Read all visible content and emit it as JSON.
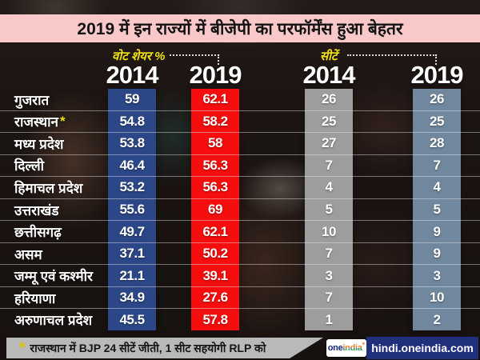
{
  "title": "2019 में इन राज्यों में बीजेपी का परफॉर्मेंस हुआ बेहतर",
  "header": {
    "vote_share_group": "वोट शेयर %",
    "seats_group": "सीटें",
    "col_vs_2014": "2014",
    "col_vs_2019": "2019",
    "col_seats_2014": "2014",
    "col_seats_2019": "2019"
  },
  "rows": [
    {
      "state": "गुजरात",
      "note": "",
      "vs2014": "59",
      "vs2019": "62.1",
      "seats2014": "26",
      "seats2019": "26"
    },
    {
      "state": "राजस्थान",
      "note": "*",
      "vs2014": "54.8",
      "vs2019": "58.2",
      "seats2014": "25",
      "seats2019": "25"
    },
    {
      "state": "मध्य प्रदेश",
      "note": "",
      "vs2014": "53.8",
      "vs2019": "58",
      "seats2014": "27",
      "seats2019": "28"
    },
    {
      "state": "दिल्ली",
      "note": "",
      "vs2014": "46.4",
      "vs2019": "56.3",
      "seats2014": "7",
      "seats2019": "7"
    },
    {
      "state": "हिमाचल प्रदेश",
      "note": "",
      "vs2014": "53.2",
      "vs2019": "56.3",
      "seats2014": "4",
      "seats2019": "4"
    },
    {
      "state": "उत्तराखंड",
      "note": "",
      "vs2014": "55.6",
      "vs2019": "69",
      "seats2014": "5",
      "seats2019": "5"
    },
    {
      "state": "छत्तीसगढ़",
      "note": "",
      "vs2014": "49.7",
      "vs2019": "62.1",
      "seats2014": "10",
      "seats2019": "9"
    },
    {
      "state": "असम",
      "note": "",
      "vs2014": "37.1",
      "vs2019": "50.2",
      "seats2014": "7",
      "seats2019": "9"
    },
    {
      "state": "जम्मू एवं कश्मीर",
      "note": "",
      "vs2014": "21.1",
      "vs2019": "39.1",
      "seats2014": "3",
      "seats2019": "3"
    },
    {
      "state": "हरियाणा",
      "note": "",
      "vs2014": "34.9",
      "vs2019": "27.6",
      "seats2014": "7",
      "seats2019": "10"
    },
    {
      "state": "अरुणाचल प्रदेश",
      "note": "",
      "vs2014": "45.5",
      "vs2019": "57.8",
      "seats2014": "1",
      "seats2019": "2"
    }
  ],
  "chart_data": {
    "type": "table",
    "title": "2019 में इन राज्यों में बीजेपी का परफॉर्मेंस हुआ बेहतर",
    "categories": [
      "गुजरात",
      "राजस्थान",
      "मध्य प्रदेश",
      "दिल्ली",
      "हिमाचल प्रदेश",
      "उत्तराखंड",
      "छत्तीसगढ़",
      "असम",
      "जम्मू एवं कश्मीर",
      "हरियाणा",
      "अरुणाचल प्रदेश"
    ],
    "series": [
      {
        "name": "वोट शेयर % 2014",
        "values": [
          59,
          54.8,
          53.8,
          46.4,
          53.2,
          55.6,
          49.7,
          37.1,
          21.1,
          34.9,
          45.5
        ]
      },
      {
        "name": "वोट शेयर % 2019",
        "values": [
          62.1,
          58.2,
          58,
          56.3,
          56.3,
          69,
          62.1,
          50.2,
          39.1,
          27.6,
          57.8
        ]
      },
      {
        "name": "सीटें 2014",
        "values": [
          26,
          25,
          27,
          7,
          4,
          5,
          10,
          7,
          3,
          7,
          1
        ]
      },
      {
        "name": "सीटें 2019",
        "values": [
          26,
          25,
          28,
          7,
          4,
          5,
          9,
          9,
          3,
          10,
          2
        ]
      }
    ],
    "footnote": "* राजस्थान में BJP 24 सीटें जीती, 1 सीट सहयोगी RLP को"
  },
  "footer": {
    "asterisk": "*",
    "note": "राजस्थान में BJP 24 सीटें जीती, 1 सीट सहयोगी RLP को",
    "logo": {
      "one": "one",
      "india": "india"
    },
    "site": "hindi.oneindia.com"
  },
  "colors": {
    "title_bg": "#f9c8c9",
    "vs2014_bar": "#2c4787",
    "vs2019_bar": "#f60d0d",
    "seats2014_bar": "#9d9d9d",
    "seats2019_bar": "#71879e",
    "accent_yellow": "#f0e010",
    "footer_banner": "#b9b9b9",
    "footer_site_bg": "#20307d"
  }
}
